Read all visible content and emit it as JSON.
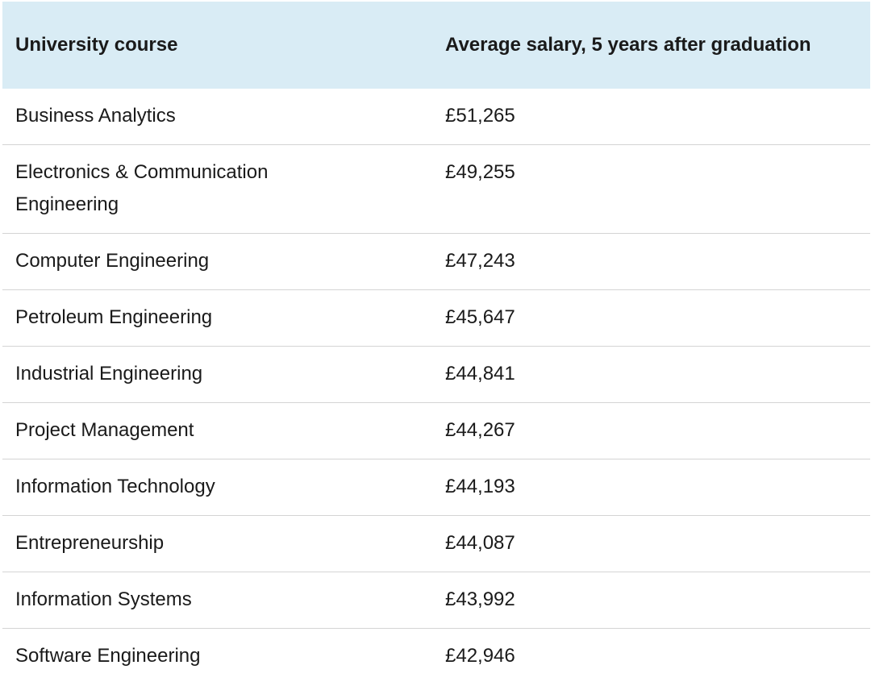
{
  "table": {
    "headers": {
      "course": "University course",
      "salary": "Average salary, 5 years after graduation"
    },
    "rows": [
      {
        "course": "Business Analytics",
        "salary": "£51,265"
      },
      {
        "course": "Electronics & Communication Engineering",
        "salary": "£49,255"
      },
      {
        "course": "Computer Engineering",
        "salary": "£47,243"
      },
      {
        "course": "Petroleum Engineering",
        "salary": "£45,647"
      },
      {
        "course": "Industrial Engineering",
        "salary": "£44,841"
      },
      {
        "course": "Project Management",
        "salary": "£44,267"
      },
      {
        "course": "Information Technology",
        "salary": "£44,193"
      },
      {
        "course": "Entrepreneurship",
        "salary": "£44,087"
      },
      {
        "course": "Information Systems",
        "salary": "£43,992"
      },
      {
        "course": "Software Engineering",
        "salary": "£42,946"
      }
    ]
  },
  "colors": {
    "header_background": "#d9ecf5",
    "row_divider": "#d4d4d4",
    "text": "#1a1a1a"
  }
}
